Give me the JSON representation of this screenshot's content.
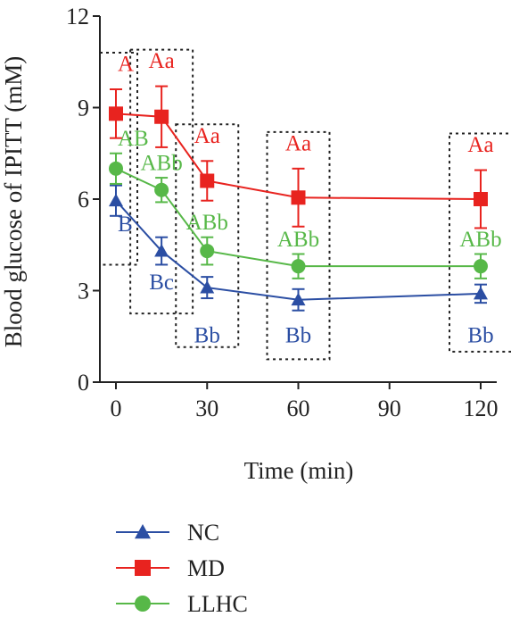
{
  "chart_data": {
    "type": "line",
    "xlabel": "Time (min)",
    "ylabel": "Blood glucose of IPITT (mM)",
    "xlim": [
      0,
      120
    ],
    "ylim": [
      0,
      12
    ],
    "x_ticks": [
      "0",
      "30",
      "60",
      "90",
      "120"
    ],
    "y_ticks": [
      "0",
      "3",
      "6",
      "9",
      "12"
    ],
    "x": [
      0,
      15,
      30,
      60,
      120
    ],
    "series": [
      {
        "name": "NC",
        "color": "#2b4ea3",
        "marker": "triangle",
        "values": [
          5.95,
          4.3,
          3.1,
          2.7,
          2.9
        ],
        "errors": [
          0.5,
          0.45,
          0.35,
          0.35,
          0.3
        ],
        "labels": [
          "B",
          "Bc",
          "Bb",
          "Bb",
          "Bb"
        ]
      },
      {
        "name": "MD",
        "color": "#e8231f",
        "marker": "square",
        "values": [
          8.8,
          8.7,
          6.6,
          6.05,
          6.0
        ],
        "errors": [
          0.8,
          1.0,
          0.65,
          0.95,
          0.95
        ],
        "labels": [
          "A",
          "Aa",
          "Aa",
          "Aa",
          "Aa"
        ]
      },
      {
        "name": "LLHC",
        "color": "#57b848",
        "marker": "circle",
        "values": [
          7.0,
          6.3,
          4.3,
          3.8,
          3.8
        ],
        "errors": [
          0.5,
          0.4,
          0.45,
          0.4,
          0.4
        ],
        "labels": [
          "AB",
          "ABb",
          "ABb",
          "ABb",
          "ABb"
        ]
      }
    ],
    "legend_position": "bottom-left",
    "grid": false
  }
}
